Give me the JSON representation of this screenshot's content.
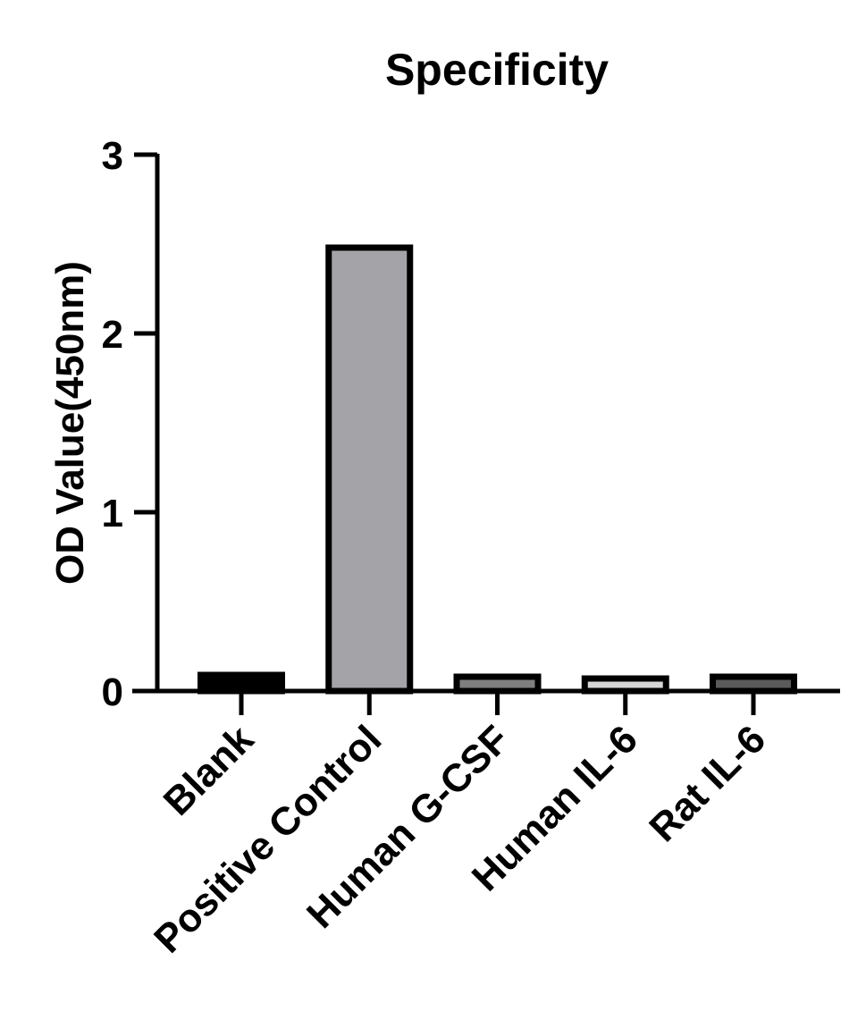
{
  "chart_data": {
    "type": "bar",
    "title": "Specificity",
    "xlabel": "",
    "ylabel": "OD Value(450nm)",
    "categories": [
      "Blank",
      "Positive Control",
      "Human G-CSF",
      "Human IL-6",
      "Rat IL-6"
    ],
    "values": [
      0.09,
      2.48,
      0.08,
      0.07,
      0.08
    ],
    "bar_colors": [
      "#000000",
      "#a3a3a8",
      "#7f7f7f",
      "#d6d6d6",
      "#5a5a5a"
    ],
    "ylim": [
      0,
      3
    ],
    "yticks": [
      "0",
      "1",
      "2",
      "3"
    ],
    "grid": false,
    "legend": "none"
  }
}
